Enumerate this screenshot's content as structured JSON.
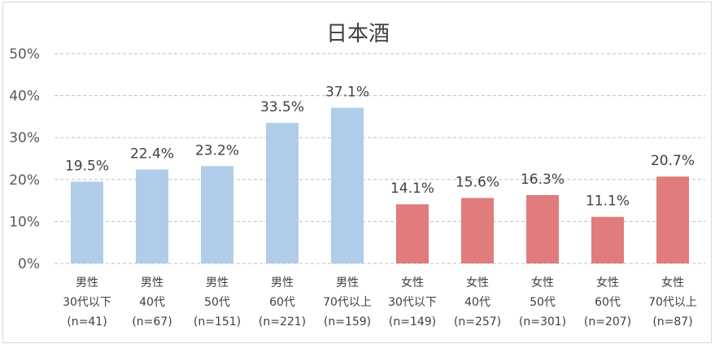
{
  "chart_data": {
    "type": "bar",
    "title": "日本酒",
    "xlabel": "",
    "ylabel": "",
    "ylim": [
      0,
      50
    ],
    "yticks": [
      0,
      10,
      20,
      30,
      40,
      50
    ],
    "ytick_labels": [
      "0%",
      "10%",
      "20%",
      "30%",
      "40%",
      "50%"
    ],
    "grid": true,
    "legend": "none",
    "categories": [
      [
        "男性",
        "30代以下",
        "(n=41)"
      ],
      [
        "男性",
        "40代",
        "(n=67)"
      ],
      [
        "男性",
        "50代",
        "(n=151)"
      ],
      [
        "男性",
        "60代",
        "(n=221)"
      ],
      [
        "男性",
        "70代以上",
        "(n=159)"
      ],
      [
        "女性",
        "30代以下",
        "(n=149)"
      ],
      [
        "女性",
        "40代",
        "(n=257)"
      ],
      [
        "女性",
        "50代",
        "(n=301)"
      ],
      [
        "女性",
        "60代",
        "(n=207)"
      ],
      [
        "女性",
        "70代以上",
        "(n=87)"
      ]
    ],
    "values": [
      19.5,
      22.4,
      23.2,
      33.5,
      37.1,
      14.1,
      15.6,
      16.3,
      11.1,
      20.7
    ],
    "value_labels": [
      "19.5%",
      "22.4%",
      "23.2%",
      "33.5%",
      "37.1%",
      "14.1%",
      "15.6%",
      "16.3%",
      "11.1%",
      "20.7%"
    ],
    "bar_colors": [
      "#afcde9",
      "#afcde9",
      "#afcde9",
      "#afcde9",
      "#afcde9",
      "#e07c7c",
      "#e07c7c",
      "#e07c7c",
      "#e07c7c",
      "#e07c7c"
    ]
  }
}
